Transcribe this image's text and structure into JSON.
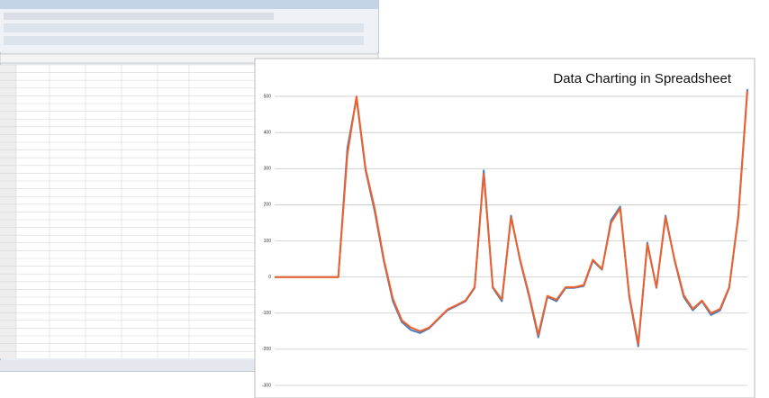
{
  "chart_data": {
    "type": "line",
    "title": "Data Charting in Spreadsheet",
    "ylim": [
      -300,
      560
    ],
    "yticks": [
      -300,
      -200,
      -100,
      0,
      100,
      200,
      300,
      400,
      500
    ],
    "grid": true,
    "series": [
      {
        "color": "#4a7fc1",
        "values": [
          0,
          0,
          0,
          0,
          0,
          0,
          0,
          0,
          357,
          495,
          295,
          182,
          45,
          -67,
          -125,
          -147,
          -155,
          -142,
          -117,
          -92,
          -80,
          -67,
          -30,
          295,
          -30,
          -67,
          170,
          45,
          -55,
          -167,
          -55,
          -67,
          -30,
          -30,
          -25,
          45,
          20,
          157,
          195,
          -55,
          -192,
          95,
          -30,
          170,
          45,
          -55,
          -92,
          -67,
          -105,
          -92,
          -30,
          170,
          520
        ]
      },
      {
        "color": "#f0602a",
        "values": [
          0,
          0,
          0,
          0,
          0,
          0,
          0,
          0,
          340,
          500,
          300,
          190,
          50,
          -60,
          -120,
          -140,
          -150,
          -140,
          -115,
          -90,
          -78,
          -65,
          -28,
          285,
          -28,
          -62,
          165,
          48,
          -50,
          -160,
          -52,
          -63,
          -28,
          -28,
          -22,
          48,
          22,
          150,
          190,
          -50,
          -185,
          90,
          -28,
          165,
          48,
          -50,
          -88,
          -65,
          -100,
          -88,
          -28,
          165,
          515
        ]
      }
    ]
  }
}
